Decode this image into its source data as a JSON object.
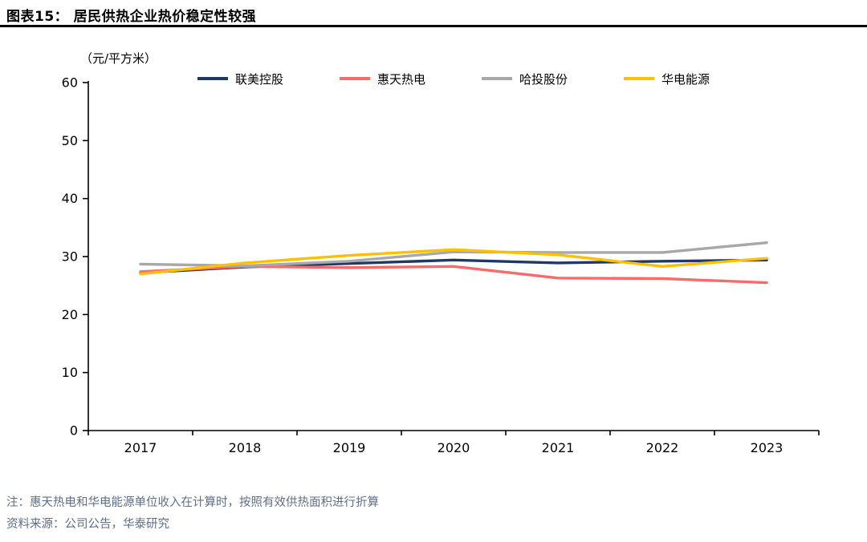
{
  "header": {
    "title": "图表15：  居民供热企业热价稳定性较强"
  },
  "chart_data": {
    "type": "line",
    "title": "居民供热企业热价稳定性较强",
    "xlabel": "",
    "ylabel": "（元/平方米）",
    "unit": "元/平方米",
    "categories": [
      "2017",
      "2018",
      "2019",
      "2020",
      "2021",
      "2022",
      "2023"
    ],
    "series": [
      {
        "name": "联美控股",
        "color": "#1F3864",
        "values": [
          27.2,
          28.2,
          28.8,
          29.4,
          28.9,
          29.2,
          29.4
        ]
      },
      {
        "name": "惠天热电",
        "color": "#F96A6A",
        "values": [
          27.4,
          28.3,
          28.1,
          28.3,
          26.3,
          26.2,
          25.5
        ]
      },
      {
        "name": "哈投股份",
        "color": "#A8A8A8",
        "values": [
          28.7,
          28.4,
          29.2,
          30.8,
          30.7,
          30.7,
          32.4
        ]
      },
      {
        "name": "华电能源",
        "color": "#FFC000",
        "values": [
          27.0,
          28.9,
          30.2,
          31.2,
          30.3,
          28.3,
          29.7
        ]
      }
    ],
    "ylim": [
      0,
      60
    ],
    "yticks": [
      0,
      10,
      20,
      30,
      40,
      50,
      60
    ],
    "grid": false,
    "legend_position": "top"
  },
  "footer": {
    "note": "注：惠天热电和华电能源单位收入在计算时，按照有效供热面积进行折算",
    "source": "资料来源：公司公告，华泰研究"
  }
}
